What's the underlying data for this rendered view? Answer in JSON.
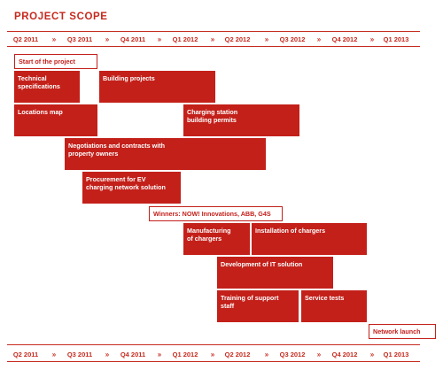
{
  "title": "PROJECT SCOPE",
  "quarters": [
    "Q2 2011",
    "Q3 2011",
    "Q4 2011",
    "Q1 2012",
    "Q2 2012",
    "Q3 2012",
    "Q4 2012",
    "Q1 2013"
  ],
  "separator": "»",
  "colors": {
    "accent": "#c3201a",
    "background": "#ffffff"
  },
  "tasks": [
    {
      "label": "Start of the project",
      "style": "outline"
    },
    {
      "label": "Technical specifications",
      "style": "filled"
    },
    {
      "label": "Building projects",
      "style": "filled"
    },
    {
      "label": "Locations map",
      "style": "filled"
    },
    {
      "label": "Charging station building permits",
      "style": "filled"
    },
    {
      "label": "Negotiations and contracts with property owners",
      "style": "filled"
    },
    {
      "label": "Procurement for EV charging network solution",
      "style": "filled"
    },
    {
      "label": "Winners: NOW! Innovations, ABB, G4S",
      "style": "outline"
    },
    {
      "label": "Manufacturing of chargers",
      "style": "filled"
    },
    {
      "label": "Installation of chargers",
      "style": "filled"
    },
    {
      "label": "Development of IT solution",
      "style": "filled"
    },
    {
      "label": "Training of support staff",
      "style": "filled"
    },
    {
      "label": "Service tests",
      "style": "filled"
    },
    {
      "label": "Network launch",
      "style": "outline"
    }
  ]
}
